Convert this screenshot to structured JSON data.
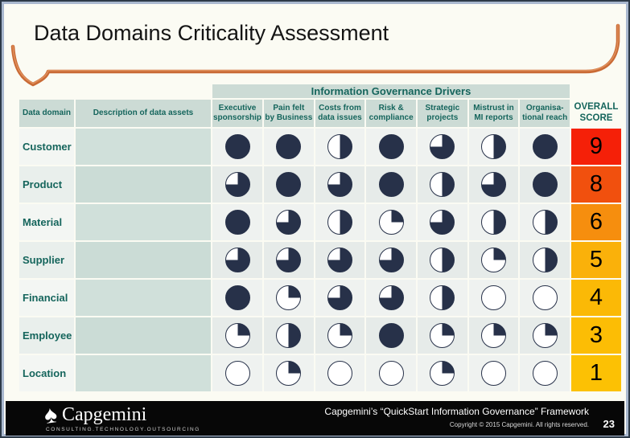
{
  "slide": {
    "title": "Data Domains Criticality Assessment",
    "page_number": "23"
  },
  "table": {
    "group_header": "Information Governance Drivers",
    "domain_header": "Data domain",
    "description_header": "Description of data assets",
    "driver_columns": [
      "Executive\nsponsorship",
      "Pain felt\nby Business",
      "Costs from\ndata issues",
      "Risk &\ncompliance",
      "Strategic\nprojects",
      "Mistrust in\nMI reports",
      "Organisa-\ntional reach"
    ],
    "score_header": "OVERALL\nSCORE",
    "rows": [
      {
        "domain": "Customer",
        "description": "",
        "ratings": [
          100,
          100,
          50,
          100,
          75,
          50,
          100
        ],
        "score": "9",
        "score_color": "#f52008"
      },
      {
        "domain": "Product",
        "description": "",
        "ratings": [
          75,
          100,
          75,
          100,
          50,
          75,
          100
        ],
        "score": "8",
        "score_color": "#f1500e"
      },
      {
        "domain": "Material",
        "description": "",
        "ratings": [
          100,
          75,
          50,
          25,
          75,
          50,
          50
        ],
        "score": "6",
        "score_color": "#f68e0e"
      },
      {
        "domain": "Supplier",
        "description": "",
        "ratings": [
          75,
          75,
          75,
          75,
          50,
          25,
          50
        ],
        "score": "5",
        "score_color": "#fab10a"
      },
      {
        "domain": "Financial",
        "description": "",
        "ratings": [
          100,
          25,
          75,
          75,
          50,
          0,
          0
        ],
        "score": "4",
        "score_color": "#fbb906"
      },
      {
        "domain": "Employee",
        "description": "",
        "ratings": [
          25,
          50,
          25,
          100,
          25,
          25,
          25
        ],
        "score": "3",
        "score_color": "#fcbd05"
      },
      {
        "domain": "Location",
        "description": "",
        "ratings": [
          0,
          25,
          0,
          0,
          25,
          0,
          0
        ],
        "score": "1",
        "score_color": "#fcc104"
      }
    ],
    "rating_legend": "Harvey ball fill percent: 0, 25, 50, 75, 100"
  },
  "footer": {
    "logo_text": "Capgemini",
    "logo_tagline": "CONSULTING.TECHNOLOGY.OUTSOURCING",
    "framework_line": "Capgemini’s “QuickStart Information Governance” Framework",
    "copyright_line": "Copyright © 2015 Capgemini. All rights reserved."
  },
  "colors": {
    "accent_orange": "#c96a35",
    "teal_text": "#15655c",
    "harvey_navy": "#273149",
    "sage_header": "#ccdbd5",
    "footer_black": "#070707"
  }
}
